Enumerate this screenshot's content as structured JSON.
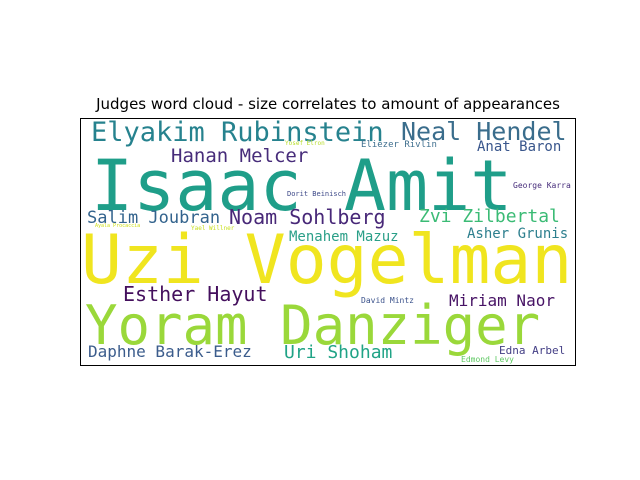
{
  "title": "Judges word cloud - size correlates to amount of appearances",
  "words": [
    {
      "text": "Isaac Amit",
      "color": "#1f9e89"
    },
    {
      "text": "Uzi Vogelman",
      "color": "#f0e51f"
    },
    {
      "text": "Yoram Danziger",
      "color": "#9ad83a"
    },
    {
      "text": "Elyakim Rubinstein",
      "color": "#26828e"
    },
    {
      "text": "Neal Hendel",
      "color": "#3a6d8c"
    },
    {
      "text": "Hanan Melcer",
      "color": "#472c7a"
    },
    {
      "text": "Anat Baron",
      "color": "#39568c"
    },
    {
      "text": "Eliezer Rivlin",
      "color": "#3f6f8e"
    },
    {
      "text": "Yosef Elron",
      "color": "#b8de29"
    },
    {
      "text": "Dorit Beinisch",
      "color": "#3e4a89"
    },
    {
      "text": "George Karra",
      "color": "#472d7b"
    },
    {
      "text": "Salim Joubran",
      "color": "#33638d"
    },
    {
      "text": "Noam Sohlberg",
      "color": "#482878"
    },
    {
      "text": "Zvi Zilbertal",
      "color": "#3bbb75"
    },
    {
      "text": "Menahem Mazuz",
      "color": "#2a9f88"
    },
    {
      "text": "Asher Grunis",
      "color": "#2d7f8e"
    },
    {
      "text": "Ayala Procaccia",
      "color": "#d0e11c"
    },
    {
      "text": "Yael Willner",
      "color": "#c9e020"
    },
    {
      "text": "Esther Hayut",
      "color": "#440f5d"
    },
    {
      "text": "Miriam Naor",
      "color": "#471365"
    },
    {
      "text": "David Mintz",
      "color": "#3b528b"
    },
    {
      "text": "Daphne Barak-Erez",
      "color": "#3b5c8c"
    },
    {
      "text": "Uri Shoham",
      "color": "#20a386"
    },
    {
      "text": "Edna Arbel",
      "color": "#433e85"
    },
    {
      "text": "Edmond Levy",
      "color": "#5ec962"
    }
  ]
}
